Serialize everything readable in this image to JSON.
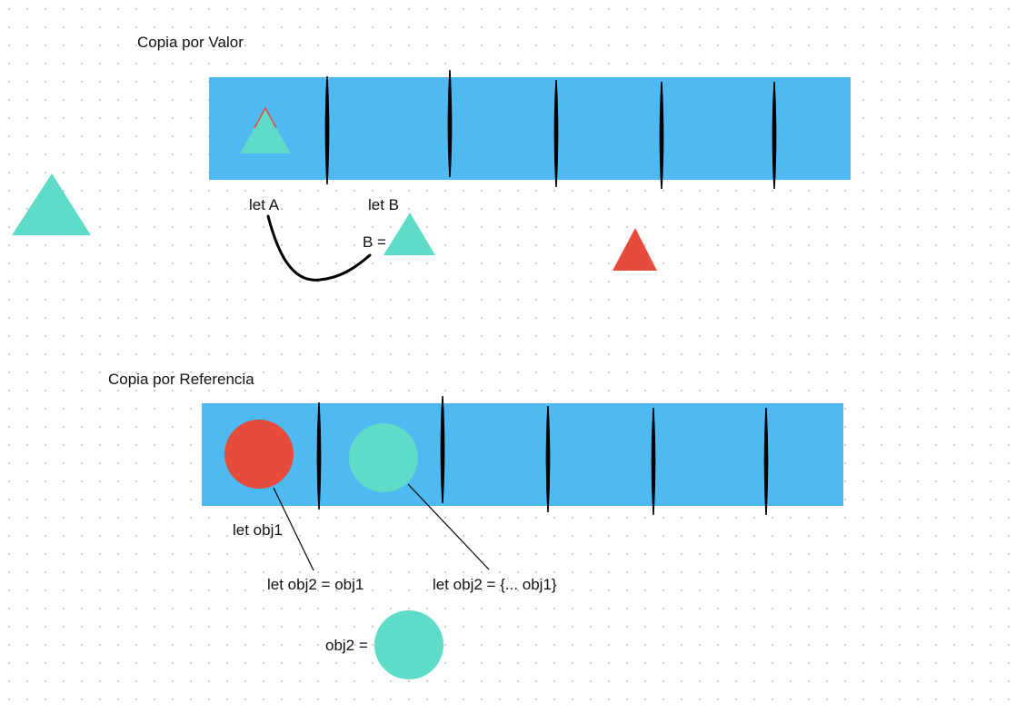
{
  "colors": {
    "band": "#4fb9f1",
    "teal": "#5edcc8",
    "red": "#e74b3c",
    "ink": "#000000",
    "canvas": "#ffffff",
    "grid_dots": "#c9c9c9"
  },
  "section_value": {
    "title": "Copia por Valor",
    "label_a": "let A",
    "label_b": "let B",
    "assign_b": "B  ="
  },
  "section_reference": {
    "title": "Copia por Referencia",
    "label_obj1": "let obj1",
    "label_obj2_ref": "let obj2 = obj1",
    "label_obj2_spread": "let obj2 = {... obj1}",
    "label_obj2_assign": "obj2 ="
  }
}
